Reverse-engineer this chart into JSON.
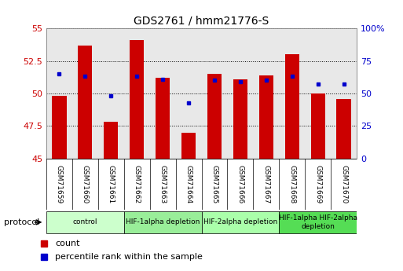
{
  "title": "GDS2761 / hmm21776-S",
  "samples": [
    "GSM71659",
    "GSM71660",
    "GSM71661",
    "GSM71662",
    "GSM71663",
    "GSM71664",
    "GSM71665",
    "GSM71666",
    "GSM71667",
    "GSM71668",
    "GSM71669",
    "GSM71670"
  ],
  "count_values": [
    49.8,
    53.7,
    47.8,
    54.1,
    51.2,
    47.0,
    51.5,
    51.1,
    51.4,
    53.0,
    50.0,
    49.6
  ],
  "percentile_values": [
    51.5,
    51.3,
    49.8,
    51.3,
    51.1,
    49.3,
    51.0,
    50.9,
    51.0,
    51.3,
    50.7,
    50.7
  ],
  "ylim_left": [
    45.0,
    55.0
  ],
  "ylim_right": [
    0,
    100
  ],
  "yticks_left": [
    45.0,
    47.5,
    50.0,
    52.5,
    55.0
  ],
  "yticks_right": [
    0,
    25,
    50,
    75,
    100
  ],
  "ytick_labels_left": [
    "45",
    "47.5",
    "50",
    "52.5",
    "55"
  ],
  "ytick_labels_right": [
    "0",
    "25",
    "50",
    "75",
    "100%"
  ],
  "bar_color": "#cc0000",
  "dot_color": "#0000cc",
  "bar_width": 0.55,
  "groups": [
    {
      "label": "control",
      "start": 0,
      "end": 2,
      "color": "#ccffcc"
    },
    {
      "label": "HIF-1alpha depletion",
      "start": 3,
      "end": 5,
      "color": "#99ee99"
    },
    {
      "label": "HIF-2alpha depletion",
      "start": 6,
      "end": 8,
      "color": "#aaffaa"
    },
    {
      "label": "HIF-1alpha HIF-2alpha\ndepletion",
      "start": 9,
      "end": 11,
      "color": "#55dd55"
    }
  ],
  "protocol_label": "protocol",
  "legend_count_label": "count",
  "legend_percentile_label": "percentile rank within the sample",
  "grid_color": "#000000",
  "background_color": "#ffffff",
  "plot_bg_color": "#e8e8e8",
  "tick_label_color_left": "#cc0000",
  "tick_label_color_right": "#0000cc"
}
